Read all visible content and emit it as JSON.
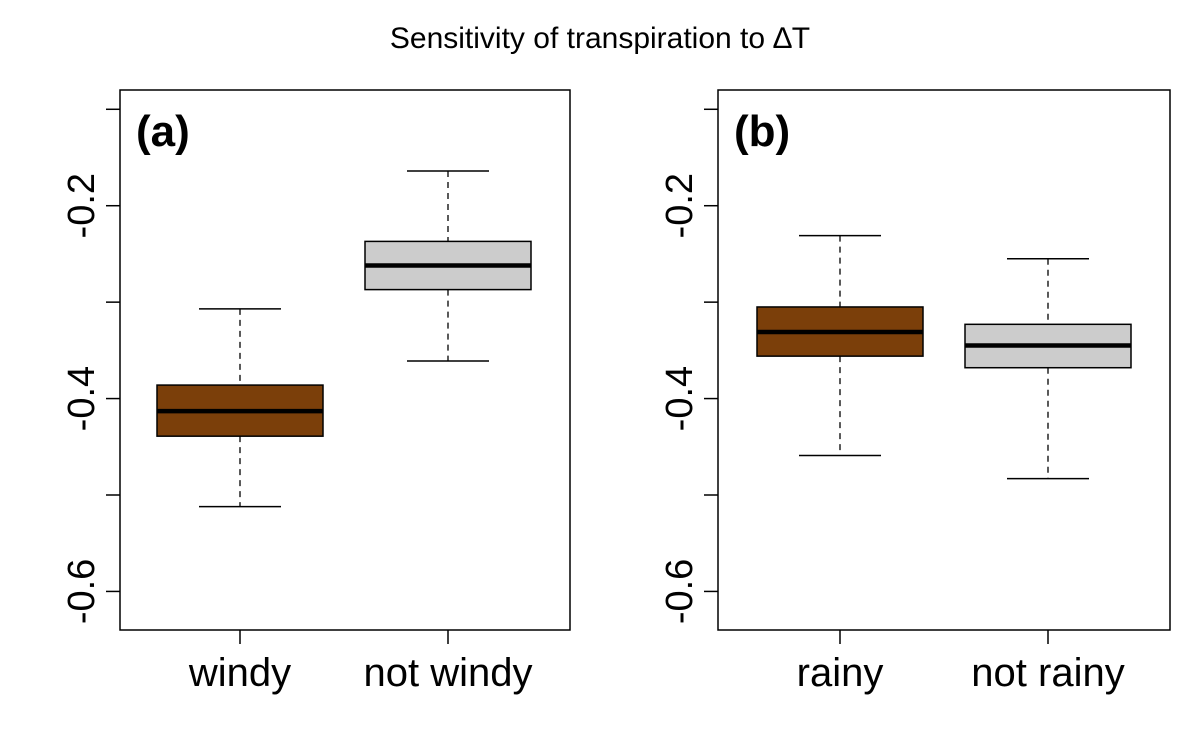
{
  "chart_data": [
    {
      "type": "box",
      "title": "Sensitivity of transpiration to ∆T",
      "panel_label": "(a)",
      "ylim": [
        -0.64,
        -0.08
      ],
      "yticks": [
        -0.6,
        -0.5,
        -0.4,
        -0.3,
        -0.2,
        -0.1
      ],
      "ytick_labels": [
        "-0.6",
        "",
        "-0.4",
        "",
        "-0.2",
        ""
      ],
      "categories": [
        "windy",
        "not windy"
      ],
      "boxes": [
        {
          "category": "windy",
          "whisker_low": -0.512,
          "q1": -0.439,
          "median": -0.413,
          "q3": -0.386,
          "whisker_high": -0.307,
          "color": "#7B3F0A"
        },
        {
          "category": "not windy",
          "whisker_low": -0.361,
          "q1": -0.287,
          "median": -0.262,
          "q3": -0.237,
          "whisker_high": -0.164,
          "color": "#CCCCCC"
        }
      ],
      "grid": false
    },
    {
      "type": "box",
      "panel_label": "(b)",
      "ylim": [
        -0.64,
        -0.08
      ],
      "yticks": [
        -0.6,
        -0.5,
        -0.4,
        -0.3,
        -0.2,
        -0.1
      ],
      "ytick_labels": [
        "-0.6",
        "",
        "-0.4",
        "",
        "-0.2",
        ""
      ],
      "categories": [
        "rainy",
        "not rainy"
      ],
      "boxes": [
        {
          "category": "rainy",
          "whisker_low": -0.459,
          "q1": -0.356,
          "median": -0.331,
          "q3": -0.305,
          "whisker_high": -0.231,
          "color": "#7B3F0A"
        },
        {
          "category": "not rainy",
          "whisker_low": -0.483,
          "q1": -0.368,
          "median": -0.345,
          "q3": -0.323,
          "whisker_high": -0.255,
          "color": "#CCCCCC"
        }
      ],
      "grid": false
    }
  ]
}
